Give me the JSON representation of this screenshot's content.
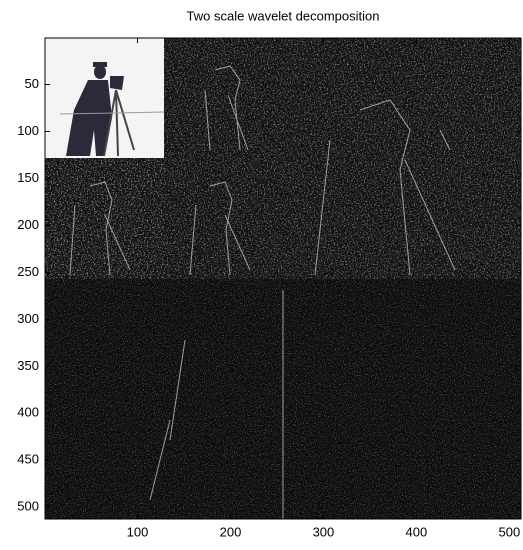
{
  "chart_data": {
    "type": "image",
    "title": "Two scale wavelet decomposition",
    "xlim": [
      0.5,
      512.5
    ],
    "ylim": [
      0.5,
      512.5
    ],
    "y_direction": "reverse",
    "xticks": [
      100,
      200,
      300,
      400,
      500
    ],
    "yticks": [
      50,
      100,
      150,
      200,
      250,
      300,
      350,
      400,
      450,
      500
    ]
  }
}
